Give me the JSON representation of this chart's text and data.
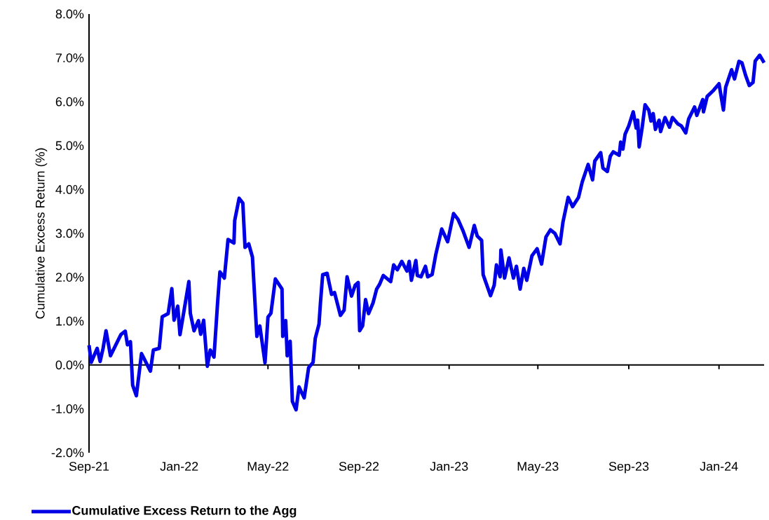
{
  "chart_data": {
    "type": "line",
    "ylabel": "Cumulative Excess Return (%)",
    "xlim": [
      "2021-09-01",
      "2024-03-02"
    ],
    "xticks": [
      {
        "value": "2021-09-01",
        "label": "Sep-21"
      },
      {
        "value": "2022-01-01",
        "label": "Jan-22"
      },
      {
        "value": "2022-05-01",
        "label": "May-22"
      },
      {
        "value": "2022-09-01",
        "label": "Sep-22"
      },
      {
        "value": "2023-01-01",
        "label": "Jan-23"
      },
      {
        "value": "2023-05-01",
        "label": "May-23"
      },
      {
        "value": "2023-09-01",
        "label": "Sep-23"
      },
      {
        "value": "2024-01-01",
        "label": "Jan-24"
      }
    ],
    "ylim": [
      -2,
      8
    ],
    "yticks": [
      {
        "value": -2,
        "label": "-2.0%"
      },
      {
        "value": -1,
        "label": "-1.0%"
      },
      {
        "value": 0,
        "label": "0.0%"
      },
      {
        "value": 1,
        "label": "1.0%"
      },
      {
        "value": 2,
        "label": "2.0%"
      },
      {
        "value": 3,
        "label": "3.0%"
      },
      {
        "value": 4,
        "label": "4.0%"
      },
      {
        "value": 5,
        "label": "5.0%"
      },
      {
        "value": 6,
        "label": "6.0%"
      },
      {
        "value": 7,
        "label": "7.0%"
      },
      {
        "value": 8,
        "label": "8.0%"
      }
    ],
    "legend": "bottom",
    "series": [
      {
        "name": "Cumulative Excess Return to the Agg",
        "color": "#0000e6",
        "x": [
          "2021-09-01",
          "2021-09-04",
          "2021-09-12",
          "2021-09-16",
          "2021-09-20",
          "2021-09-24",
          "2021-09-30",
          "2021-10-07",
          "2021-10-14",
          "2021-10-20",
          "2021-10-23",
          "2021-10-27",
          "2021-10-30",
          "2021-11-04",
          "2021-11-11",
          "2021-11-23",
          "2021-11-27",
          "2021-12-05",
          "2021-12-09",
          "2021-12-17",
          "2021-12-22",
          "2021-12-25",
          "2021-12-30",
          "2022-01-02",
          "2022-01-08",
          "2022-01-14",
          "2022-01-16",
          "2022-01-21",
          "2022-01-27",
          "2022-01-30",
          "2022-02-03",
          "2022-02-08",
          "2022-02-12",
          "2022-02-17",
          "2022-02-22",
          "2022-02-25",
          "2022-03-03",
          "2022-03-08",
          "2022-03-16",
          "2022-03-17",
          "2022-03-23",
          "2022-03-28",
          "2022-03-31",
          "2022-04-05",
          "2022-04-10",
          "2022-04-16",
          "2022-04-20",
          "2022-04-27",
          "2022-05-01",
          "2022-05-05",
          "2022-05-11",
          "2022-05-20",
          "2022-05-21",
          "2022-05-25",
          "2022-05-27",
          "2022-05-31",
          "2022-06-03",
          "2022-06-08",
          "2022-06-12",
          "2022-06-19",
          "2022-06-25",
          "2022-07-01",
          "2022-07-04",
          "2022-07-09",
          "2022-07-11",
          "2022-07-14",
          "2022-07-20",
          "2022-07-26",
          "2022-07-30",
          "2022-08-07",
          "2022-08-12",
          "2022-08-16",
          "2022-08-22",
          "2022-08-27",
          "2022-08-31",
          "2022-09-02",
          "2022-09-06",
          "2022-09-10",
          "2022-09-14",
          "2022-09-20",
          "2022-09-25",
          "2022-09-29",
          "2022-10-04",
          "2022-10-14",
          "2022-10-18",
          "2022-10-23",
          "2022-10-29",
          "2022-11-05",
          "2022-11-08",
          "2022-11-11",
          "2022-11-17",
          "2022-11-19",
          "2022-11-24",
          "2022-11-30",
          "2022-12-03",
          "2022-12-09",
          "2022-12-14",
          "2022-12-22",
          "2022-12-30",
          "2023-01-07",
          "2023-01-13",
          "2023-01-20",
          "2023-01-28",
          "2023-02-04",
          "2023-02-08",
          "2023-02-14",
          "2023-02-16",
          "2023-02-26",
          "2023-03-03",
          "2023-03-06",
          "2023-03-11",
          "2023-03-12",
          "2023-03-17",
          "2023-03-23",
          "2023-03-29",
          "2023-04-02",
          "2023-04-07",
          "2023-04-12",
          "2023-04-16",
          "2023-04-23",
          "2023-04-30",
          "2023-05-06",
          "2023-05-12",
          "2023-05-18",
          "2023-05-24",
          "2023-05-31",
          "2023-06-04",
          "2023-06-11",
          "2023-06-17",
          "2023-06-25",
          "2023-06-30",
          "2023-07-08",
          "2023-07-14",
          "2023-07-17",
          "2023-07-25",
          "2023-07-28",
          "2023-08-03",
          "2023-08-07",
          "2023-08-11",
          "2023-08-19",
          "2023-08-21",
          "2023-08-24",
          "2023-08-27",
          "2023-09-01",
          "2023-09-07",
          "2023-09-11",
          "2023-09-13",
          "2023-09-15",
          "2023-09-19",
          "2023-09-23",
          "2023-09-28",
          "2023-10-01",
          "2023-10-04",
          "2023-10-07",
          "2023-10-12",
          "2023-10-14",
          "2023-10-20",
          "2023-10-26",
          "2023-10-30",
          "2023-11-06",
          "2023-11-11",
          "2023-11-17",
          "2023-11-21",
          "2023-11-29",
          "2023-12-02",
          "2023-12-10",
          "2023-12-11",
          "2023-12-16",
          "2023-12-24",
          "2024-01-01",
          "2024-01-07",
          "2024-01-10",
          "2024-01-18",
          "2024-01-22",
          "2024-01-28",
          "2024-02-01",
          "2024-02-06",
          "2024-02-11",
          "2024-02-16",
          "2024-02-19",
          "2024-02-25",
          "2024-03-02"
        ],
        "values": [
          0.45,
          0.06,
          0.38,
          0.08,
          0.38,
          0.78,
          0.21,
          0.45,
          0.69,
          0.77,
          0.46,
          0.53,
          -0.46,
          -0.7,
          0.26,
          -0.14,
          0.34,
          0.38,
          1.1,
          1.17,
          1.74,
          1.02,
          1.34,
          0.69,
          1.29,
          1.9,
          1.18,
          0.78,
          1.01,
          0.7,
          1.02,
          -0.03,
          0.34,
          0.18,
          1.45,
          2.12,
          1.98,
          2.86,
          2.78,
          3.29,
          3.8,
          3.69,
          2.68,
          2.76,
          2.46,
          0.65,
          0.89,
          0.05,
          1.09,
          1.18,
          1.96,
          1.73,
          0.65,
          1.01,
          0.21,
          0.54,
          -0.83,
          -1.02,
          -0.5,
          -0.75,
          -0.06,
          0.06,
          0.61,
          0.93,
          1.42,
          2.06,
          2.09,
          1.61,
          1.65,
          1.13,
          1.25,
          2.01,
          1.57,
          1.82,
          1.88,
          0.78,
          0.89,
          1.49,
          1.17,
          1.41,
          1.73,
          1.84,
          2.04,
          1.9,
          2.28,
          2.17,
          2.36,
          2.14,
          2.36,
          1.93,
          2.38,
          2.04,
          2.01,
          2.25,
          2.01,
          2.06,
          2.52,
          3.1,
          2.81,
          3.45,
          3.32,
          3.05,
          2.68,
          3.18,
          2.94,
          2.84,
          2.06,
          1.58,
          1.82,
          2.28,
          2.01,
          2.62,
          1.98,
          2.44,
          1.98,
          2.25,
          1.73,
          2.2,
          1.93,
          2.49,
          2.65,
          2.3,
          2.92,
          3.08,
          3.0,
          2.76,
          3.26,
          3.82,
          3.61,
          3.82,
          4.17,
          4.57,
          4.22,
          4.65,
          4.84,
          4.49,
          4.41,
          4.76,
          4.86,
          4.78,
          5.08,
          4.92,
          5.26,
          5.45,
          5.77,
          5.4,
          5.58,
          4.97,
          5.4,
          5.93,
          5.81,
          5.56,
          5.73,
          5.37,
          5.58,
          5.32,
          5.64,
          5.42,
          5.64,
          5.5,
          5.45,
          5.29,
          5.61,
          5.88,
          5.69,
          6.05,
          5.77,
          6.12,
          6.25,
          6.41,
          5.81,
          6.33,
          6.73,
          6.52,
          6.92,
          6.89,
          6.6,
          6.37,
          6.44,
          6.93,
          7.06,
          6.89
        ]
      }
    ]
  }
}
